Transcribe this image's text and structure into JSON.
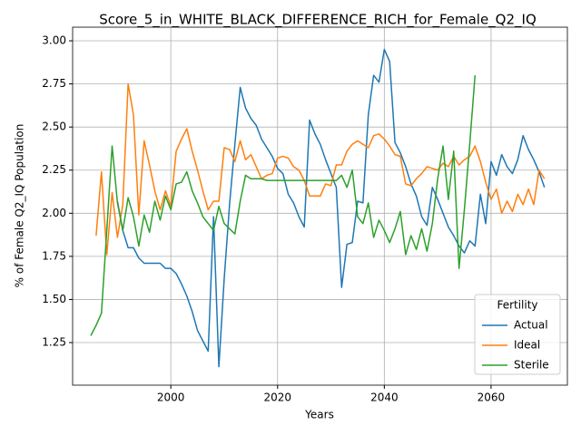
{
  "chart_data": {
    "type": "line",
    "title": "Score_5_in_WHITE_BLACK_DIFFERENCE_RICH_for_Female_Q2_IQ",
    "xlabel": "Years",
    "ylabel": "% of Female Q2_IQ Population",
    "legend_title": "Fertility",
    "legend_position": "lower right",
    "grid": true,
    "x": [
      1985,
      1986,
      1987,
      1988,
      1989,
      1990,
      1991,
      1992,
      1993,
      1994,
      1995,
      1996,
      1997,
      1998,
      1999,
      2000,
      2001,
      2002,
      2003,
      2004,
      2005,
      2006,
      2007,
      2008,
      2009,
      2010,
      2011,
      2012,
      2013,
      2014,
      2015,
      2016,
      2017,
      2018,
      2019,
      2020,
      2021,
      2022,
      2023,
      2024,
      2025,
      2026,
      2027,
      2028,
      2029,
      2030,
      2031,
      2032,
      2033,
      2034,
      2035,
      2036,
      2037,
      2038,
      2039,
      2040,
      2041,
      2042,
      2043,
      2044,
      2045,
      2046,
      2047,
      2048,
      2049,
      2050,
      2051,
      2052,
      2053,
      2054,
      2055,
      2056,
      2057,
      2058,
      2059,
      2060,
      2061,
      2062,
      2063,
      2064,
      2065,
      2066,
      2067,
      2068,
      2069,
      2070
    ],
    "series": [
      {
        "name": "Actual",
        "color": "#1f77b4",
        "values": [
          null,
          null,
          null,
          null,
          null,
          2.07,
          1.9,
          1.8,
          1.8,
          1.74,
          1.71,
          1.71,
          1.71,
          1.71,
          1.68,
          1.68,
          1.65,
          1.59,
          1.52,
          1.43,
          1.32,
          1.26,
          1.2,
          1.98,
          1.11,
          1.62,
          2.05,
          2.4,
          2.73,
          2.61,
          2.55,
          2.51,
          2.43,
          2.38,
          2.33,
          2.26,
          2.23,
          2.11,
          2.06,
          1.98,
          1.92,
          2.54,
          2.46,
          2.4,
          2.31,
          2.23,
          2.15,
          1.57,
          1.82,
          1.83,
          2.07,
          2.06,
          2.57,
          2.8,
          2.76,
          2.95,
          2.88,
          2.41,
          2.35,
          2.27,
          2.17,
          2.1,
          1.98,
          1.93,
          2.15,
          2.08,
          2.0,
          1.92,
          1.87,
          1.81,
          1.77,
          1.84,
          1.81,
          2.11,
          1.94,
          2.3,
          2.22,
          2.34,
          2.27,
          2.23,
          2.31,
          2.45,
          2.37,
          2.31,
          2.24,
          2.15
        ]
      },
      {
        "name": "Ideal",
        "color": "#ff7f0e",
        "values": [
          null,
          1.87,
          2.24,
          1.76,
          2.12,
          1.86,
          2.05,
          2.75,
          2.57,
          1.99,
          2.42,
          2.28,
          2.13,
          2.02,
          2.13,
          2.04,
          2.36,
          2.43,
          2.49,
          2.36,
          2.25,
          2.13,
          2.02,
          2.07,
          2.07,
          2.38,
          2.37,
          2.3,
          2.42,
          2.31,
          2.34,
          2.27,
          2.2,
          2.22,
          2.23,
          2.32,
          2.33,
          2.32,
          2.27,
          2.25,
          2.19,
          2.1,
          2.1,
          2.1,
          2.17,
          2.16,
          2.28,
          2.28,
          2.36,
          2.4,
          2.42,
          2.4,
          2.38,
          2.45,
          2.46,
          2.43,
          2.39,
          2.34,
          2.33,
          2.17,
          2.16,
          2.2,
          2.23,
          2.27,
          2.26,
          2.25,
          2.29,
          2.27,
          2.33,
          2.28,
          2.31,
          2.33,
          2.39,
          2.3,
          2.18,
          2.08,
          2.14,
          2.0,
          2.07,
          2.01,
          2.11,
          2.05,
          2.14,
          2.05,
          2.25,
          2.2
        ]
      },
      {
        "name": "Sterile",
        "color": "#2ca02c",
        "values": [
          1.29,
          1.35,
          1.42,
          1.9,
          2.39,
          2.06,
          1.9,
          2.09,
          1.98,
          1.81,
          1.99,
          1.89,
          2.07,
          1.96,
          2.1,
          2.02,
          2.17,
          2.18,
          2.24,
          2.13,
          2.06,
          1.98,
          1.94,
          1.9,
          2.04,
          1.94,
          1.91,
          1.88,
          2.07,
          2.22,
          2.2,
          2.2,
          2.2,
          2.19,
          2.19,
          2.19,
          2.19,
          2.19,
          2.19,
          2.19,
          2.19,
          2.19,
          2.19,
          2.19,
          2.19,
          2.19,
          2.19,
          2.22,
          2.15,
          2.25,
          1.98,
          1.94,
          2.06,
          1.86,
          1.96,
          1.9,
          1.83,
          1.91,
          2.01,
          1.76,
          1.87,
          1.79,
          1.91,
          1.78,
          1.94,
          2.2,
          2.39,
          2.08,
          2.36,
          1.68,
          2.02,
          2.4,
          2.8,
          null,
          null,
          null,
          null,
          null,
          null,
          null,
          null,
          null,
          null,
          null,
          null,
          null
        ]
      }
    ],
    "xlim": [
      1981.6,
      2074.3
    ],
    "ylim": [
      1.003,
      3.079
    ],
    "xticks": [
      2000,
      2020,
      2040,
      2060
    ],
    "yticks": [
      1.25,
      {
        "value": 1.5,
        "label": "1.50"
      },
      1.75,
      {
        "value": 2.0,
        "label": "2.00"
      },
      2.25,
      {
        "value": 2.5,
        "label": "2.50"
      },
      2.75,
      {
        "value": 3.0,
        "label": "3.00"
      }
    ]
  }
}
